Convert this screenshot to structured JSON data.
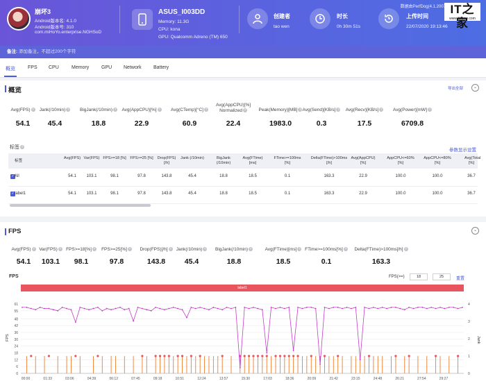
{
  "app": {
    "game_name": "崩坏3",
    "android_version": "Android版本名: 4.1.0",
    "android_code": "Android版本号: 310",
    "package": "com.miHoYo.enterprise.NGHSoD"
  },
  "device": {
    "name": "ASUS_I003DD",
    "memory": "Memory: 11.3G",
    "cpu": "CPU: kona",
    "gpu": "GPU: Qualcomm Adreno (TM) 650"
  },
  "meta": {
    "creator_label": "创建者",
    "creator_value": "tao wen",
    "duration_label": "时长",
    "duration_value": "0h 30m 51s",
    "upload_label": "上传时间",
    "upload_value": "22/07/2020 19:13:46",
    "perfdog_note": "数据由PerfDog(4.1.2007"
  },
  "watermark": {
    "logo": "IT之家",
    "site": "www.ithome.com"
  },
  "note": {
    "label": "备注:",
    "placeholder": "添加备注，不超过200个字符"
  },
  "tabs": [
    "概览",
    "FPS",
    "CPU",
    "Memory",
    "GPU",
    "Network",
    "Battery"
  ],
  "overview": {
    "title": "概览",
    "export_label": "导出全部",
    "stats": [
      {
        "label": "Avg(FPS)",
        "value": "54.1"
      },
      {
        "label": "Jank(/10min)",
        "value": "45.4"
      },
      {
        "label": "BigJank(/10min)",
        "value": "18.8"
      },
      {
        "label": "Avg(AppCPU)[%]",
        "value": "22.9"
      },
      {
        "label": "Avg(CTemp)[°C]",
        "value": "60.9"
      },
      {
        "label": "Avg(AppCPU)[%] Normalized",
        "value": "22.4"
      },
      {
        "label": "Peak(Memory)[MB]",
        "value": "1983.0"
      },
      {
        "label": "Avg(Send)[KB/s]",
        "value": "0.3"
      },
      {
        "label": "Avg(Recv)[KB/s]",
        "value": "17.5"
      },
      {
        "label": "Avg(Power)[mW]",
        "value": "6709.8"
      }
    ],
    "tags_label": "标签",
    "param_settings": "参数显示设置",
    "table": {
      "headers": [
        "标签",
        "Avg(FPS)",
        "Var(FPS)",
        "FPS>=18 [%]",
        "FPS>=25 [%]",
        "Drop(FPS) [/h]",
        "Jank (/10min)",
        "BigJank (/10min)",
        "Avg(FTime) [ms]",
        "FTime>=100ms [%]",
        "Delta(FTime)>100ms [/h]",
        "Avg(AppCPU) [%]",
        "AppCPU<=60% [%]",
        "AppCPU<=80% [%]",
        "Avg(Total [%]"
      ],
      "rows": [
        [
          "All",
          "54.1",
          "103.1",
          "98.1",
          "97.8",
          "143.8",
          "45.4",
          "18.8",
          "18.5",
          "0.1",
          "163.3",
          "22.9",
          "100.0",
          "100.0",
          "36.7"
        ],
        [
          "label1",
          "54.1",
          "103.1",
          "98.1",
          "97.8",
          "143.8",
          "45.4",
          "18.8",
          "18.5",
          "0.1",
          "163.3",
          "22.9",
          "100.0",
          "100.0",
          "36.7"
        ]
      ]
    }
  },
  "fps": {
    "title": "FPS",
    "stats": [
      {
        "label": "Avg(FPS)",
        "value": "54.1"
      },
      {
        "label": "Var(FPS)",
        "value": "103.1"
      },
      {
        "label": "FPS>=18[%]",
        "value": "98.1"
      },
      {
        "label": "FPS>=25[%]",
        "value": "97.8"
      },
      {
        "label": "Drop(FPS)[/h]",
        "value": "143.8"
      },
      {
        "label": "Jank(/10min)",
        "value": "45.4"
      },
      {
        "label": "BigJank(/10min)",
        "value": "18.8"
      },
      {
        "label": "Avg(FTime)[ms]",
        "value": "18.5"
      },
      {
        "label": "FTime>=100ms[%]",
        "value": "0.1"
      },
      {
        "label": "Delta(FTime)>100ms[/h]",
        "value": "163.3"
      }
    ],
    "chart_label": "FPS",
    "filter_label": "FPS(>=)",
    "filter_a": "18",
    "filter_b": "25",
    "reset_label": "重置",
    "legend_label": "label1"
  },
  "chart_data": {
    "type": "line",
    "title": "FPS",
    "ylabel": "FPS",
    "y2label": "Jank",
    "ylim": [
      0,
      61
    ],
    "y2lim": [
      0,
      4
    ],
    "y_ticks": [
      "0",
      "6",
      "12",
      "18",
      "24",
      "30",
      "36",
      "42",
      "48",
      "55",
      "61"
    ],
    "y2_ticks": [
      "0",
      "1",
      "2",
      "3",
      "4"
    ],
    "x_ticks": [
      "00:00",
      "01:33",
      "03:06",
      "04:39",
      "06:12",
      "07:45",
      "09:18",
      "10:51",
      "12:24",
      "13:57",
      "15:30",
      "17:03",
      "18:36",
      "20:09",
      "21:42",
      "23:15",
      "24:48",
      "26:21",
      "27:54",
      "29:27"
    ],
    "series": [
      {
        "name": "FPS",
        "color": "#c53ac9",
        "values": [
          58,
          58,
          57,
          56,
          58,
          57,
          57,
          56,
          55,
          58,
          57,
          56,
          45,
          58,
          57,
          56,
          57,
          58,
          55,
          57,
          56,
          57,
          58,
          56,
          57,
          46,
          58,
          57,
          56,
          55,
          58,
          57,
          56,
          57,
          58,
          57,
          56,
          49,
          58,
          57,
          58,
          57,
          56,
          58,
          57,
          56,
          58,
          57,
          58,
          5,
          58,
          57,
          58,
          57,
          56,
          18,
          58,
          57,
          58,
          57,
          58,
          20,
          58,
          57,
          58,
          58,
          57,
          8,
          58,
          57,
          58,
          58,
          57,
          58,
          57,
          58,
          12,
          58,
          57,
          58,
          57,
          58,
          57,
          58,
          58,
          57,
          56,
          58,
          57,
          58,
          58,
          57,
          58,
          57,
          58,
          57,
          58,
          58,
          57,
          58
        ]
      },
      {
        "name": "Jank",
        "color": "#ef7d2a",
        "values": [
          0,
          1,
          0,
          1,
          0,
          1,
          0,
          0,
          1,
          0,
          1,
          1,
          0,
          1,
          0,
          0,
          1,
          0,
          1,
          0,
          1,
          1,
          0,
          1,
          0,
          1,
          0,
          1,
          1,
          0,
          1,
          1,
          1,
          1,
          1,
          1,
          1,
          1,
          1,
          1,
          1,
          1,
          1,
          1,
          1,
          1,
          0,
          1,
          0,
          1,
          1,
          1,
          1,
          1,
          1,
          1,
          1,
          1,
          1,
          1,
          1,
          1,
          1,
          1,
          1,
          1,
          1,
          1,
          1,
          1,
          1,
          1,
          1,
          0,
          1,
          1,
          1,
          1,
          1,
          1,
          1,
          1,
          0,
          1,
          1,
          0,
          1,
          1,
          0,
          1,
          0,
          1,
          0,
          1,
          1,
          0,
          1,
          0,
          1,
          0
        ]
      },
      {
        "name": "BigJank",
        "color": "#e8555f",
        "values": [
          0,
          0,
          1,
          0,
          0,
          0,
          1,
          0,
          0,
          0,
          0,
          0,
          1,
          0,
          0,
          0,
          0,
          1,
          0,
          0,
          0,
          0,
          0,
          0,
          0,
          0,
          0,
          1,
          0,
          0,
          1,
          1,
          1,
          1,
          0,
          1,
          1,
          0,
          1,
          0,
          1,
          0,
          0,
          0,
          0,
          1,
          0,
          0,
          0,
          1,
          1,
          1,
          1,
          1,
          1,
          1,
          0,
          1,
          1,
          1,
          1,
          1,
          1,
          0,
          0,
          1,
          0,
          0,
          1,
          0,
          0,
          1,
          0,
          0,
          0,
          0,
          0,
          0,
          1,
          0,
          0,
          0,
          0,
          0,
          1,
          0,
          0,
          1,
          0,
          0,
          0,
          0,
          0,
          1,
          0,
          0,
          0,
          0,
          1,
          0
        ]
      }
    ]
  }
}
